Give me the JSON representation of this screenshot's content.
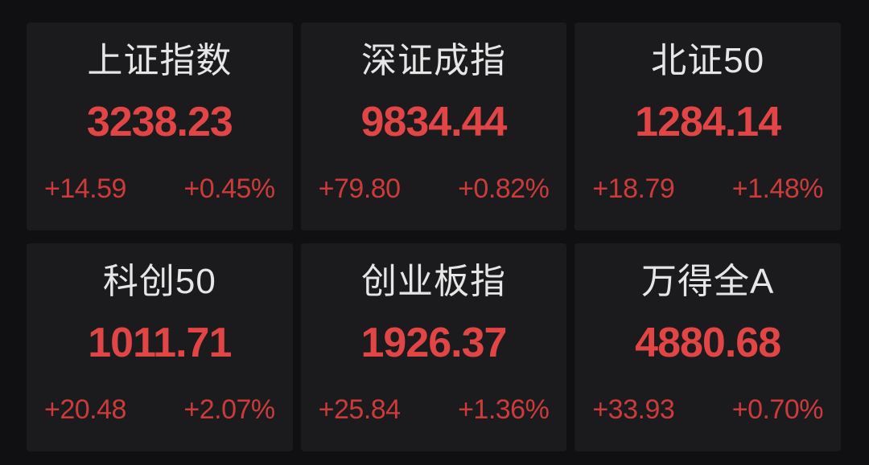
{
  "colors": {
    "page-bg": "#101012",
    "card-bg": "#1b1b1d",
    "title-color": "#e6e6e6",
    "value-red": "#e24545",
    "change-red": "#cb3b3b"
  },
  "indices": [
    {
      "name": "上证指数",
      "value": "3238.23",
      "change": "+14.59",
      "change_pct": "+0.45%"
    },
    {
      "name": "深证成指",
      "value": "9834.44",
      "change": "+79.80",
      "change_pct": "+0.82%"
    },
    {
      "name": "北证50",
      "value": "1284.14",
      "change": "+18.79",
      "change_pct": "+1.48%"
    },
    {
      "name": "科创50",
      "value": "1011.71",
      "change": "+20.48",
      "change_pct": "+2.07%"
    },
    {
      "name": "创业板指",
      "value": "1926.37",
      "change": "+25.84",
      "change_pct": "+1.36%"
    },
    {
      "name": "万得全A",
      "value": "4880.68",
      "change": "+33.93",
      "change_pct": "+0.70%"
    }
  ]
}
